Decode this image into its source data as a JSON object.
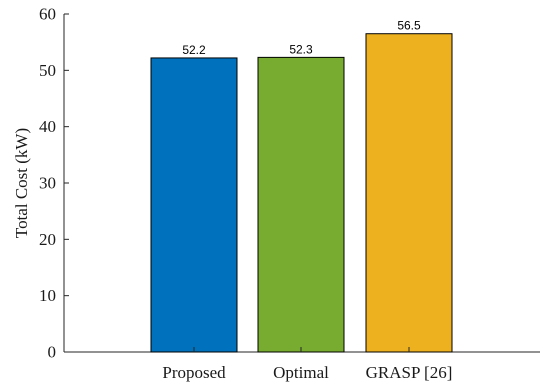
{
  "chart_data": {
    "type": "bar",
    "categories": [
      "Proposed",
      "Optimal",
      "GRASP [26]"
    ],
    "values": [
      52.2,
      52.3,
      56.5
    ],
    "data_labels": [
      "52.2",
      "52.3",
      "56.5"
    ],
    "colors": [
      "#0072BD",
      "#77AC30",
      "#EDB120"
    ],
    "title": "",
    "xlabel": "",
    "ylabel": "Total Cost (kW)",
    "ylim": [
      0,
      60
    ],
    "yticks": [
      0,
      10,
      20,
      30,
      40,
      50,
      60
    ],
    "ytick_labels": [
      "0",
      "10",
      "20",
      "30",
      "40",
      "50",
      "60"
    ],
    "grid": false,
    "legend": "none"
  }
}
